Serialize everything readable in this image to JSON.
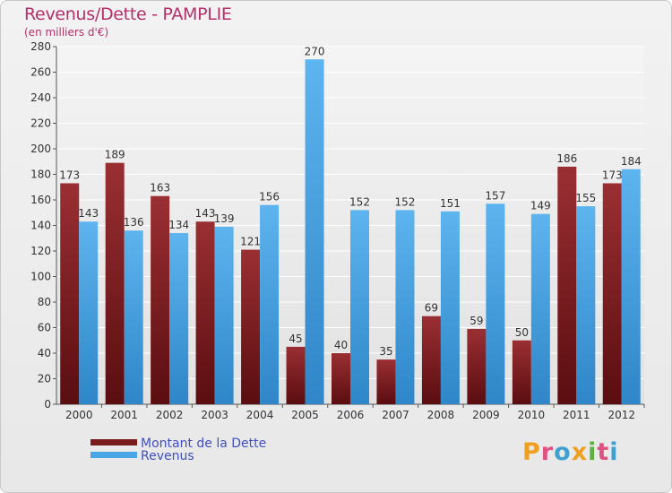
{
  "chart_data": {
    "type": "bar",
    "title": "Revenus/Dette - PAMPLIE",
    "subtitle": "(en milliers d'€)",
    "categories": [
      "2000",
      "2001",
      "2002",
      "2003",
      "2004",
      "2005",
      "2006",
      "2007",
      "2008",
      "2009",
      "2010",
      "2011",
      "2012"
    ],
    "series": [
      {
        "name": "Montant de la Dette",
        "color": "#7a1c1e",
        "values": [
          173,
          189,
          163,
          143,
          121,
          45,
          40,
          35,
          69,
          59,
          50,
          186,
          173
        ]
      },
      {
        "name": "Revenus",
        "color": "#4aa6e6",
        "values": [
          143,
          136,
          134,
          139,
          156,
          270,
          152,
          152,
          151,
          157,
          149,
          155,
          184
        ]
      }
    ],
    "ylim": [
      0,
      280
    ],
    "yticks": [
      0,
      20,
      40,
      60,
      80,
      100,
      120,
      140,
      160,
      180,
      200,
      220,
      240,
      260,
      280
    ],
    "grid": true,
    "legend_position": "bottom-left"
  },
  "logo": {
    "text": "Proxiti",
    "colors": [
      "#f0a020",
      "#e05080",
      "#40a0d0",
      "#f0a020",
      "#60b040",
      "#e05080",
      "#40a0d0"
    ]
  }
}
